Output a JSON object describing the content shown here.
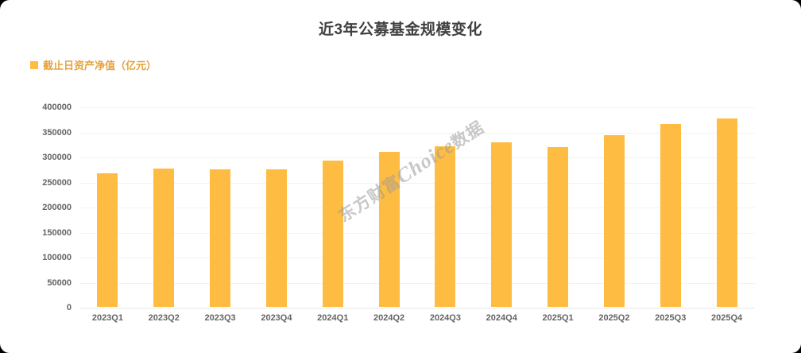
{
  "chart_data": {
    "type": "bar",
    "title": "近3年公募基金规模变化",
    "xlabel": "",
    "ylabel": "",
    "categories": [
      "2023Q1",
      "2023Q2",
      "2023Q3",
      "2023Q4",
      "2024Q1",
      "2024Q2",
      "2024Q3",
      "2024Q4",
      "2025Q1",
      "2025Q2",
      "2025Q3",
      "2025Q4"
    ],
    "series": [
      {
        "name": "截止日资产净值（亿元）",
        "values": [
          267000,
          277000,
          275000,
          275000,
          292000,
          309000,
          320000,
          328000,
          319000,
          343000,
          365000,
          377000
        ]
      }
    ],
    "ylim": [
      0,
      400000
    ],
    "ytick_interval": 50000,
    "yticks": [
      0,
      50000,
      100000,
      150000,
      200000,
      250000,
      300000,
      350000,
      400000
    ],
    "grid": true,
    "legend_position": "top-left",
    "bar_color": "#FEBC42",
    "watermark": {
      "cjk_left": "东方财富",
      "latin": "Choice",
      "cjk_right": "数据"
    }
  },
  "colors": {
    "bar": "#FEBC42",
    "title_text": "#404040",
    "legend_text": "#E6A23C",
    "axis_text": "#646464",
    "gridline": "#F2F2F2",
    "background": "#FFFFFF"
  }
}
